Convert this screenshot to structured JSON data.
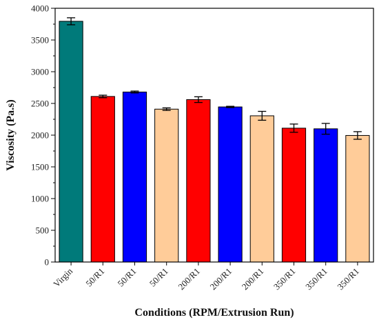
{
  "chart_data": {
    "type": "bar",
    "title": "",
    "xlabel": "Conditions (RPM/Extrusion Run)",
    "ylabel": "Viscosity (Pa.s)",
    "ylim": [
      0,
      4000
    ],
    "yticks": [
      0,
      500,
      1000,
      1500,
      2000,
      2500,
      3000,
      3500,
      4000
    ],
    "grid": false,
    "categories": [
      "Virgin",
      "50/R1",
      "50/R1",
      "50/R1",
      "200/R1",
      "200/R1",
      "200/R1",
      "350/R1",
      "350/R1",
      "350/R1"
    ],
    "values": [
      3795,
      2610,
      2680,
      2410,
      2560,
      2445,
      2305,
      2110,
      2100,
      1995
    ],
    "errors": [
      55,
      20,
      15,
      20,
      45,
      10,
      70,
      65,
      85,
      60
    ],
    "colors": [
      "#007a7a",
      "#ff0000",
      "#0000ff",
      "#ffcc99",
      "#ff0000",
      "#0000ff",
      "#ffcc99",
      "#ff0000",
      "#0000ff",
      "#ffcc99"
    ]
  }
}
